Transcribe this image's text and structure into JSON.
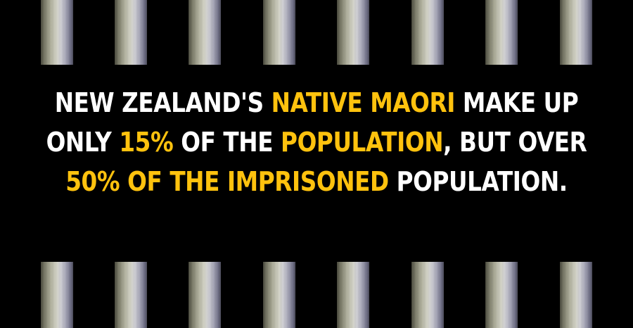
{
  "colors": {
    "background": "#000000",
    "text": "#ffffff",
    "highlight": "#ffc20e"
  },
  "headline": {
    "line1": [
      {
        "text": "NEW ZEALAND'S ",
        "highlight": false
      },
      {
        "text": "NATIVE MAORI",
        "highlight": true
      },
      {
        "text": " MAKE UP",
        "highlight": false
      }
    ],
    "line2": [
      {
        "text": "ONLY ",
        "highlight": false
      },
      {
        "text": "15%",
        "highlight": true
      },
      {
        "text": " OF THE ",
        "highlight": false
      },
      {
        "text": "POPULATION",
        "highlight": true
      },
      {
        "text": ", BUT OVER",
        "highlight": false
      }
    ],
    "line3": [
      {
        "text": "50% OF THE IMPRISONED",
        "highlight": true
      },
      {
        "text": " POPULATION.",
        "highlight": false
      }
    ]
  },
  "decor": {
    "top_bar_count": 8,
    "bottom_bar_count": 8
  }
}
